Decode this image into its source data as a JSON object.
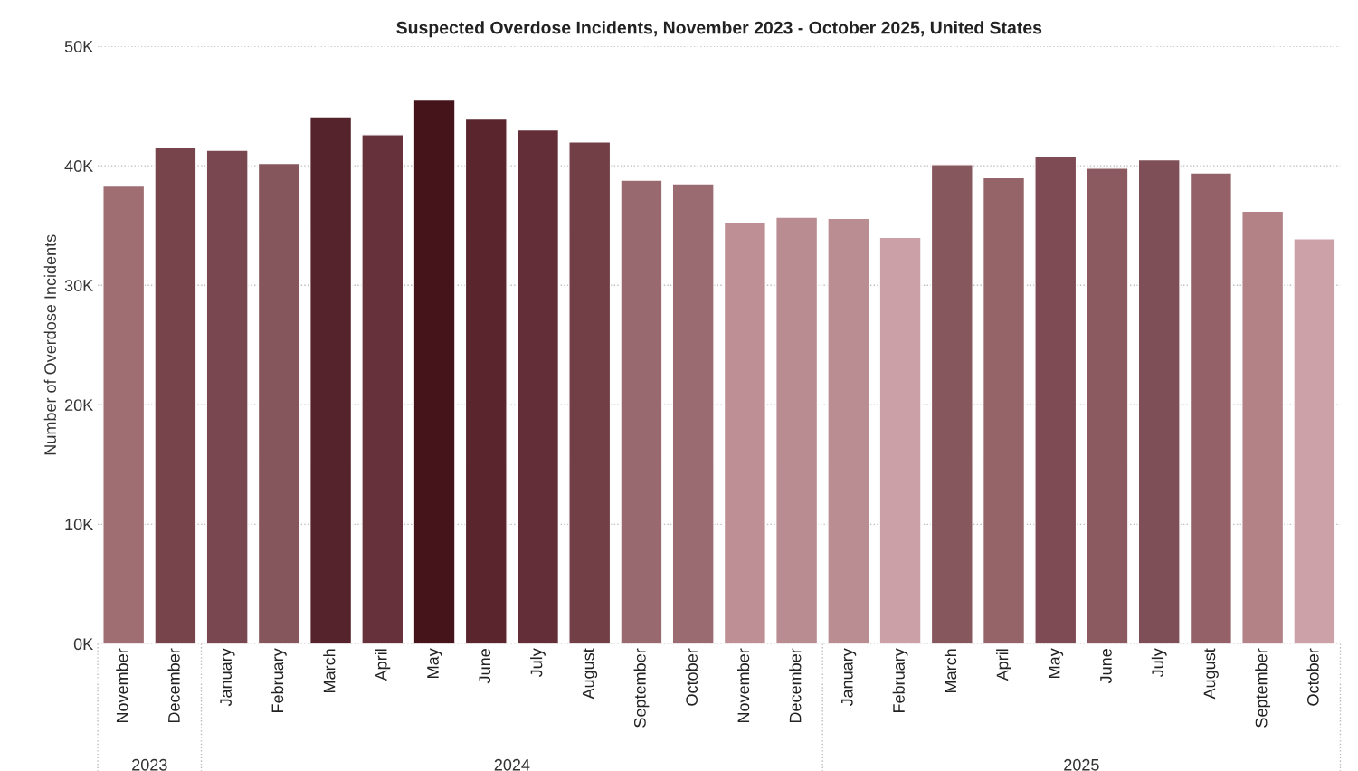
{
  "chart_data": {
    "type": "bar",
    "title": "Suspected Overdose Incidents, November 2023 - October 2025, United States",
    "ylabel": "Number of Overdose Incidents",
    "categories": [
      "November",
      "December",
      "January",
      "February",
      "March",
      "April",
      "May",
      "June",
      "July",
      "August",
      "September",
      "October",
      "November",
      "December",
      "January",
      "February",
      "March",
      "April",
      "May",
      "June",
      "July",
      "August",
      "September",
      "October"
    ],
    "values": [
      38300,
      41500,
      41300,
      40200,
      44100,
      42600,
      45500,
      43900,
      43000,
      42000,
      38800,
      38500,
      35300,
      35700,
      35600,
      34000,
      40100,
      39000,
      40800,
      39800,
      40500,
      39400,
      36200,
      33900
    ],
    "colors": [
      "#9e6e73",
      "#77444b",
      "#784750",
      "#85565c",
      "#55232c",
      "#66313b",
      "#45141b",
      "#5b252e",
      "#632e37",
      "#723f47",
      "#986a6f",
      "#9a6b71",
      "#be9096",
      "#b98c92",
      "#ba8d93",
      "#cca0a7",
      "#86575d",
      "#946469",
      "#7e4b55",
      "#8a5a60",
      "#7e4f57",
      "#936167",
      "#b28287",
      "#cda1a8"
    ],
    "ylim": [
      0,
      50000
    ],
    "yticks": [
      {
        "value": 0,
        "label": "0K"
      },
      {
        "value": 10000,
        "label": "10K"
      },
      {
        "value": 20000,
        "label": "20K"
      },
      {
        "value": 30000,
        "label": "30K"
      },
      {
        "value": 40000,
        "label": "40K"
      },
      {
        "value": 50000,
        "label": "50K"
      }
    ],
    "grid": "y",
    "annotations": [
      "2023",
      "2024",
      "2025"
    ]
  }
}
